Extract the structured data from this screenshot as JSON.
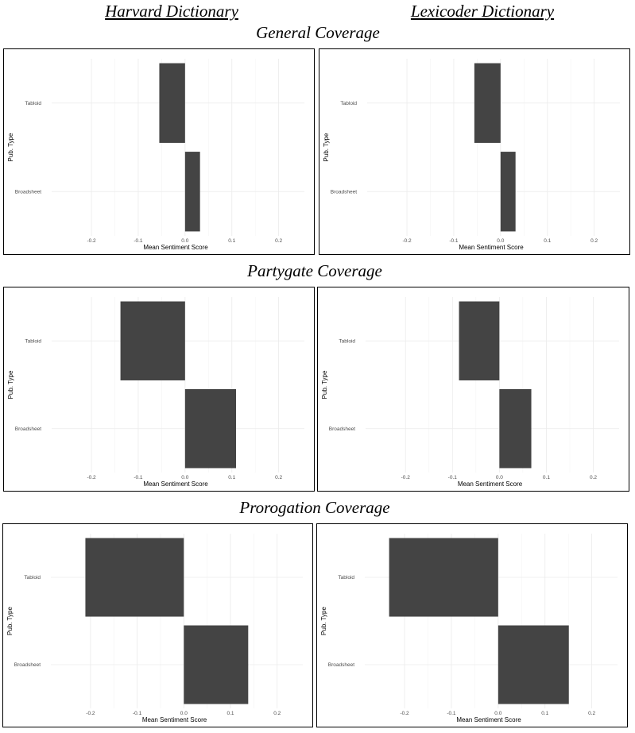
{
  "headers": {
    "left": "Harvard Dictionary",
    "right": "Lexicoder Dictionary"
  },
  "sections": [
    {
      "title": "General Coverage"
    },
    {
      "title": "Partygate Coverage"
    },
    {
      "title": "Prorogation Coverage"
    }
  ],
  "colors": {
    "bar": "#444444",
    "grid": "#ebebeb",
    "border": "#000000"
  },
  "chart_data": [
    {
      "type": "bar",
      "orientation": "horizontal",
      "section": "General Coverage",
      "dictionary": "Harvard Dictionary",
      "categories": [
        "Tabloid",
        "Broadsheet"
      ],
      "values": [
        -0.055,
        0.032
      ],
      "xlabel": "Mean Sentiment Score",
      "ylabel": "Pub. Type",
      "xlim": [
        -0.285,
        0.255
      ],
      "xticks": [
        -0.2,
        -0.1,
        0.0,
        0.1,
        0.2
      ],
      "xtick_labels": [
        "-0.2",
        "-0.1",
        "0.0",
        "0.1",
        "0.2"
      ],
      "grid": true
    },
    {
      "type": "bar",
      "orientation": "horizontal",
      "section": "General Coverage",
      "dictionary": "Lexicoder Dictionary",
      "categories": [
        "Tabloid",
        "Broadsheet"
      ],
      "values": [
        -0.056,
        0.032
      ],
      "xlabel": "Mean Sentiment Score",
      "ylabel": "Pub. Type",
      "xlim": [
        -0.285,
        0.255
      ],
      "xticks": [
        -0.2,
        -0.1,
        0.0,
        0.1,
        0.2
      ],
      "xtick_labels": [
        "-0.2",
        "-0.1",
        "0.0",
        "0.1",
        "0.2"
      ],
      "grid": true
    },
    {
      "type": "bar",
      "orientation": "horizontal",
      "section": "Partygate Coverage",
      "dictionary": "Harvard Dictionary",
      "categories": [
        "Tabloid",
        "Broadsheet"
      ],
      "values": [
        -0.138,
        0.109
      ],
      "xlabel": "Mean Sentiment Score",
      "ylabel": "Pub. Type",
      "xlim": [
        -0.285,
        0.255
      ],
      "xticks": [
        -0.2,
        -0.1,
        0.0,
        0.1,
        0.2
      ],
      "xtick_labels": [
        "-0.2",
        "-0.1",
        "0.0",
        "0.1",
        "0.2"
      ],
      "grid": true
    },
    {
      "type": "bar",
      "orientation": "horizontal",
      "section": "Partygate Coverage",
      "dictionary": "Lexicoder Dictionary",
      "categories": [
        "Tabloid",
        "Broadsheet"
      ],
      "values": [
        -0.086,
        0.068
      ],
      "xlabel": "Mean Sentiment Score",
      "ylabel": "Pub. Type",
      "xlim": [
        -0.285,
        0.255
      ],
      "xticks": [
        -0.2,
        -0.1,
        0.0,
        0.1,
        0.2
      ],
      "xtick_labels": [
        "-0.2",
        "-0.1",
        "0.0",
        "0.1",
        "0.2"
      ],
      "grid": true
    },
    {
      "type": "bar",
      "orientation": "horizontal",
      "section": "Prorogation Coverage",
      "dictionary": "Harvard Dictionary",
      "categories": [
        "Tabloid",
        "Broadsheet"
      ],
      "values": [
        -0.211,
        0.138
      ],
      "xlabel": "Mean Sentiment Score",
      "ylabel": "Pub. Type",
      "xlim": [
        -0.285,
        0.255
      ],
      "xticks": [
        -0.2,
        -0.1,
        0.0,
        0.1,
        0.2
      ],
      "xtick_labels": [
        "-0.2",
        "-0.1",
        "0.0",
        "0.1",
        "0.2"
      ],
      "grid": true
    },
    {
      "type": "bar",
      "orientation": "horizontal",
      "section": "Prorogation Coverage",
      "dictionary": "Lexicoder Dictionary",
      "categories": [
        "Tabloid",
        "Broadsheet"
      ],
      "values": [
        -0.233,
        0.151
      ],
      "xlabel": "Mean Sentiment Score",
      "ylabel": "Pub. Type",
      "xlim": [
        -0.285,
        0.255
      ],
      "xticks": [
        -0.2,
        -0.1,
        0.0,
        0.1,
        0.2
      ],
      "xtick_labels": [
        "-0.2",
        "-0.1",
        "0.0",
        "0.1",
        "0.2"
      ],
      "grid": true
    }
  ]
}
